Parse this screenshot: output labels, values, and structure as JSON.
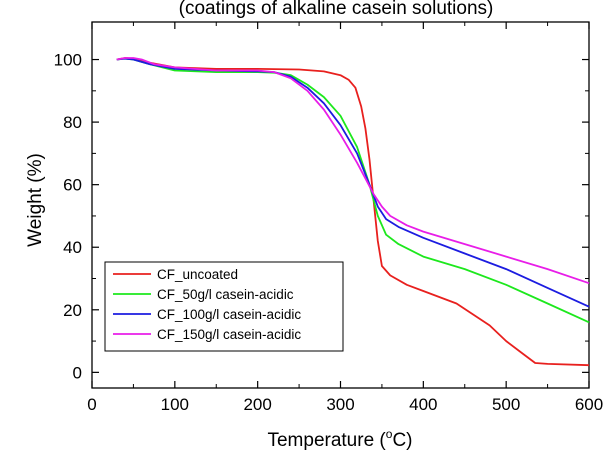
{
  "chart_data": {
    "type": "line",
    "title": "(coatings of alkaline casein solutions)",
    "xlabel": {
      "prefix": "Temperature (",
      "sup": "o",
      "suffix": "C)"
    },
    "ylabel": "Weight (%)",
    "xlim": [
      0,
      600
    ],
    "ylim": [
      -5,
      112
    ],
    "xticks": [
      0,
      100,
      200,
      300,
      400,
      500,
      600
    ],
    "xtick_labels": [
      "0",
      "100",
      "200",
      "300",
      "400",
      "500",
      "600"
    ],
    "yticks": [
      0,
      20,
      40,
      60,
      80,
      100
    ],
    "ytick_labels": [
      "0",
      "20",
      "40",
      "60",
      "80",
      "100"
    ],
    "grid": false,
    "legend_position": "bottom-left",
    "series": [
      {
        "name": "CF_uncoated",
        "color": "#e8201e",
        "points": [
          [
            30,
            100
          ],
          [
            40,
            100.5
          ],
          [
            50,
            100.3
          ],
          [
            70,
            99
          ],
          [
            100,
            97.5
          ],
          [
            150,
            97
          ],
          [
            200,
            97
          ],
          [
            250,
            96.8
          ],
          [
            280,
            96.2
          ],
          [
            300,
            95
          ],
          [
            310,
            93.5
          ],
          [
            318,
            91
          ],
          [
            325,
            85
          ],
          [
            330,
            78
          ],
          [
            335,
            68
          ],
          [
            340,
            55
          ],
          [
            345,
            42
          ],
          [
            350,
            34
          ],
          [
            360,
            31
          ],
          [
            380,
            28
          ],
          [
            400,
            26
          ],
          [
            440,
            22
          ],
          [
            480,
            15
          ],
          [
            500,
            10
          ],
          [
            520,
            6
          ],
          [
            535,
            3
          ],
          [
            550,
            2.7
          ],
          [
            600,
            2.3
          ]
        ]
      },
      {
        "name": "CF_50g/l casein-acidic",
        "color": "#1de81d",
        "points": [
          [
            30,
            100
          ],
          [
            40,
            100.3
          ],
          [
            50,
            100
          ],
          [
            70,
            98.5
          ],
          [
            100,
            96.5
          ],
          [
            150,
            96
          ],
          [
            200,
            96
          ],
          [
            220,
            95.8
          ],
          [
            240,
            95
          ],
          [
            260,
            92
          ],
          [
            280,
            88
          ],
          [
            300,
            82
          ],
          [
            320,
            72
          ],
          [
            335,
            60
          ],
          [
            345,
            50
          ],
          [
            355,
            44
          ],
          [
            370,
            41
          ],
          [
            400,
            37
          ],
          [
            450,
            33
          ],
          [
            500,
            28
          ],
          [
            550,
            22
          ],
          [
            600,
            16
          ]
        ]
      },
      {
        "name": "CF_100g/l casein-acidic",
        "color": "#1c1ce0",
        "points": [
          [
            30,
            100
          ],
          [
            40,
            100.3
          ],
          [
            50,
            100
          ],
          [
            70,
            98.5
          ],
          [
            100,
            97
          ],
          [
            150,
            96.5
          ],
          [
            200,
            96.2
          ],
          [
            220,
            96
          ],
          [
            240,
            94.5
          ],
          [
            260,
            91
          ],
          [
            280,
            86
          ],
          [
            300,
            79
          ],
          [
            320,
            70
          ],
          [
            335,
            60
          ],
          [
            345,
            53
          ],
          [
            355,
            49
          ],
          [
            370,
            46.5
          ],
          [
            400,
            43
          ],
          [
            450,
            38
          ],
          [
            500,
            33
          ],
          [
            550,
            27
          ],
          [
            600,
            21
          ]
        ]
      },
      {
        "name": "CF_150g/l casein-acidic",
        "color": "#e81ee8",
        "points": [
          [
            30,
            100
          ],
          [
            40,
            100.5
          ],
          [
            50,
            100.5
          ],
          [
            60,
            100
          ],
          [
            75,
            98.5
          ],
          [
            100,
            97.5
          ],
          [
            150,
            96.5
          ],
          [
            200,
            96.5
          ],
          [
            220,
            96
          ],
          [
            240,
            94
          ],
          [
            260,
            90
          ],
          [
            280,
            84
          ],
          [
            300,
            76
          ],
          [
            320,
            67
          ],
          [
            330,
            62
          ],
          [
            340,
            57
          ],
          [
            350,
            53
          ],
          [
            360,
            50
          ],
          [
            380,
            47
          ],
          [
            400,
            45
          ],
          [
            450,
            41
          ],
          [
            500,
            37
          ],
          [
            550,
            33
          ],
          [
            600,
            28.5
          ]
        ]
      }
    ]
  },
  "colors": {
    "axis": "#000000",
    "background": "#ffffff"
  }
}
